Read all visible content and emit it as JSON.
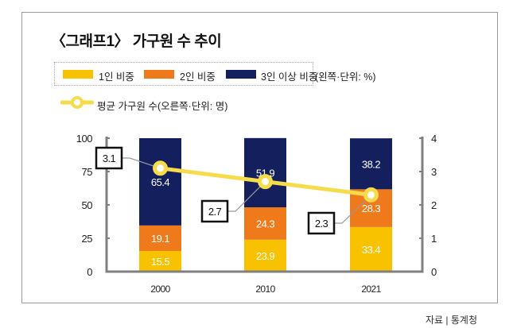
{
  "title": "〈그래프1〉 가구원 수 추이",
  "source": "자료 | 통계청",
  "legend": {
    "items": [
      {
        "label": "1인 비중",
        "color": "#f8c200"
      },
      {
        "label": "2인 비중",
        "color": "#ee7a1c"
      },
      {
        "label": "3인 이상 비중",
        "color": "#14205e"
      }
    ],
    "unit_left": "(왼쪽·단위: %)",
    "line_label": "평균 가구원 수(오른쪽·단위: 명)",
    "line_color": "#f6dc4a"
  },
  "chart_data": {
    "type": "bar",
    "stacked": true,
    "title": "〈그래프1〉 가구원 수 추이",
    "categories": [
      "2000",
      "2010",
      "2021"
    ],
    "series": [
      {
        "name": "1인 비중",
        "axis": "left",
        "color": "#f8c200",
        "values": [
          15.5,
          23.9,
          33.4
        ]
      },
      {
        "name": "2인 비중",
        "axis": "left",
        "color": "#ee7a1c",
        "values": [
          19.1,
          24.3,
          28.3
        ]
      },
      {
        "name": "3인 이상 비중",
        "axis": "left",
        "color": "#14205e",
        "values": [
          65.4,
          51.9,
          38.2
        ]
      },
      {
        "name": "평균 가구원 수",
        "axis": "right",
        "type": "line",
        "color": "#f6dc4a",
        "values": [
          3.1,
          2.7,
          2.3
        ]
      }
    ],
    "y_left": {
      "label": "(왼쪽·단위: %)",
      "ylim": [
        0,
        100
      ],
      "ticks": [
        "0",
        "25",
        "50",
        "75",
        "100"
      ]
    },
    "y_right": {
      "label": "(오른쪽·단위: 명)",
      "ylim": [
        0,
        4
      ],
      "ticks": [
        "0",
        "1",
        "2",
        "3",
        "4"
      ]
    },
    "grid": false,
    "legend_position": "top-left",
    "line_labels": [
      "3.1",
      "2.7",
      "2.3"
    ],
    "bar_labels": [
      [
        "15.5",
        "23.9",
        "33.4"
      ],
      [
        "19.1",
        "24.3",
        "28.3"
      ],
      [
        "65.4",
        "51.9",
        "38.2"
      ]
    ]
  }
}
